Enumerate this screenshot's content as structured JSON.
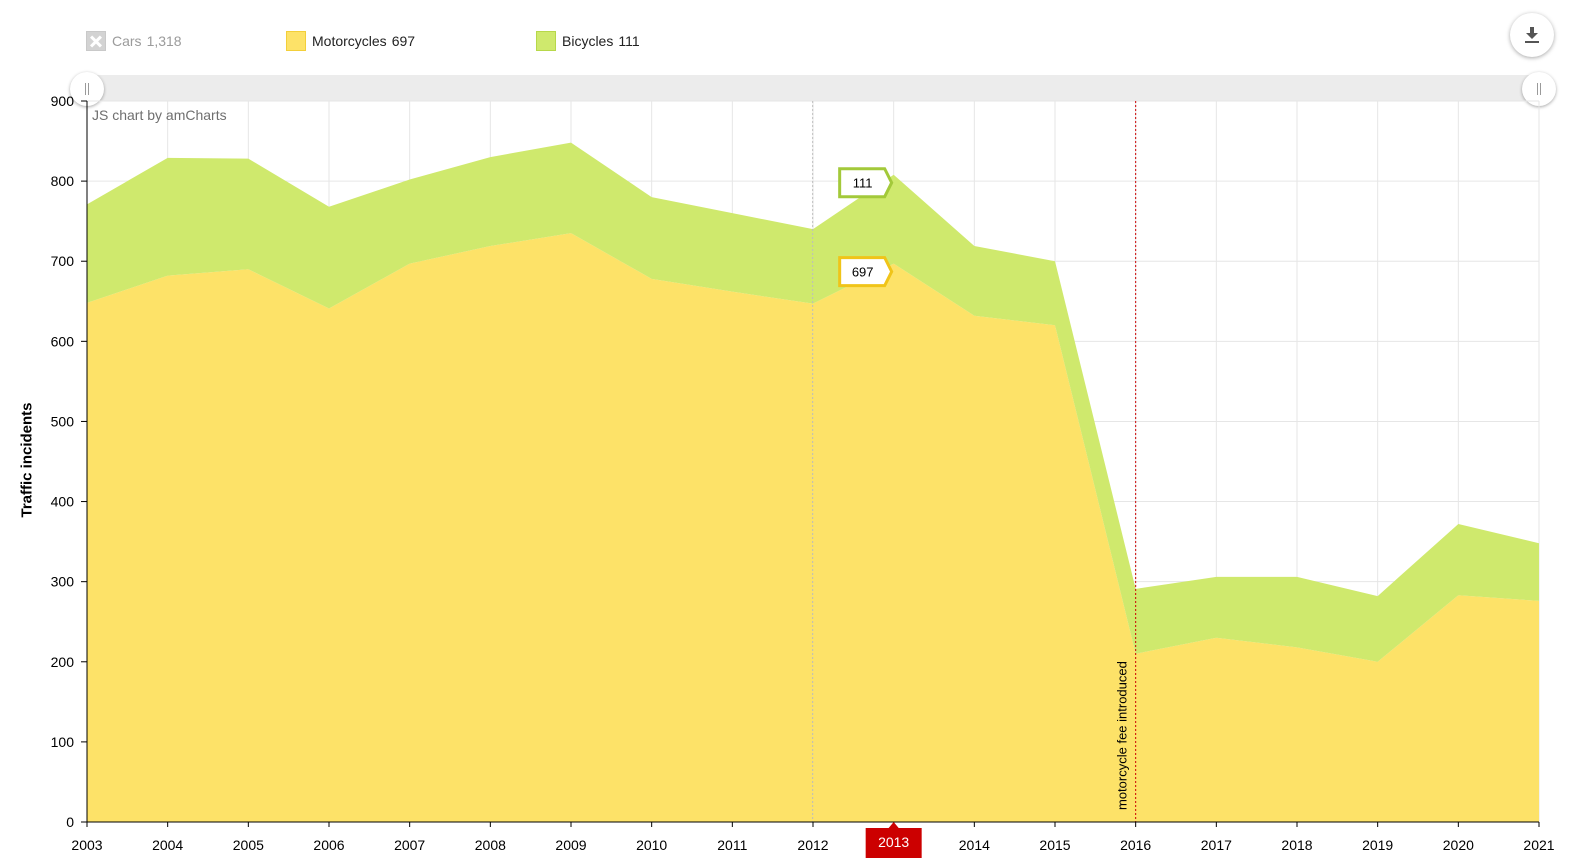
{
  "legend": {
    "items": [
      {
        "label": "Cars",
        "value": "1,318",
        "color": "#d3d3d3",
        "hidden": true
      },
      {
        "label": "Motorcycles",
        "value": "697",
        "color": "#fde268",
        "hidden": false
      },
      {
        "label": "Bicycles",
        "value": "111",
        "color": "#cfe96d",
        "hidden": false
      }
    ]
  },
  "toolbar": {
    "download_icon": "download-icon"
  },
  "credit": "JS chart by amCharts",
  "chart_data": {
    "type": "area",
    "stacked": true,
    "title": "",
    "xlabel": "",
    "ylabel": "Traffic incidents",
    "ylim": [
      0,
      900
    ],
    "yticks": [
      0,
      100,
      200,
      300,
      400,
      500,
      600,
      700,
      800,
      900
    ],
    "categories": [
      "2003",
      "2004",
      "2005",
      "2006",
      "2007",
      "2008",
      "2009",
      "2010",
      "2011",
      "2012",
      "2013",
      "2014",
      "2015",
      "2016",
      "2017",
      "2018",
      "2019",
      "2020",
      "2021"
    ],
    "series": [
      {
        "name": "Motorcycles",
        "color": "#fde268",
        "values": [
          648,
          682,
          690,
          641,
          697,
          719,
          735,
          678,
          662,
          647,
          697,
          632,
          620,
          210,
          230,
          218,
          200,
          283,
          276
        ]
      },
      {
        "name": "Bicycles",
        "color": "#cfe96d",
        "values": [
          123,
          147,
          138,
          127,
          105,
          111,
          113,
          102,
          98,
          93,
          111,
          87,
          80,
          81,
          76,
          88,
          82,
          89,
          72
        ]
      }
    ],
    "hidden_series": [
      {
        "name": "Cars",
        "total": "1,318"
      }
    ],
    "cursor": {
      "category": "2013",
      "labels": [
        "111",
        "697"
      ]
    },
    "guide": {
      "category": "2016",
      "label": "motorcycle fee introduced",
      "color": "#cc0000"
    }
  }
}
